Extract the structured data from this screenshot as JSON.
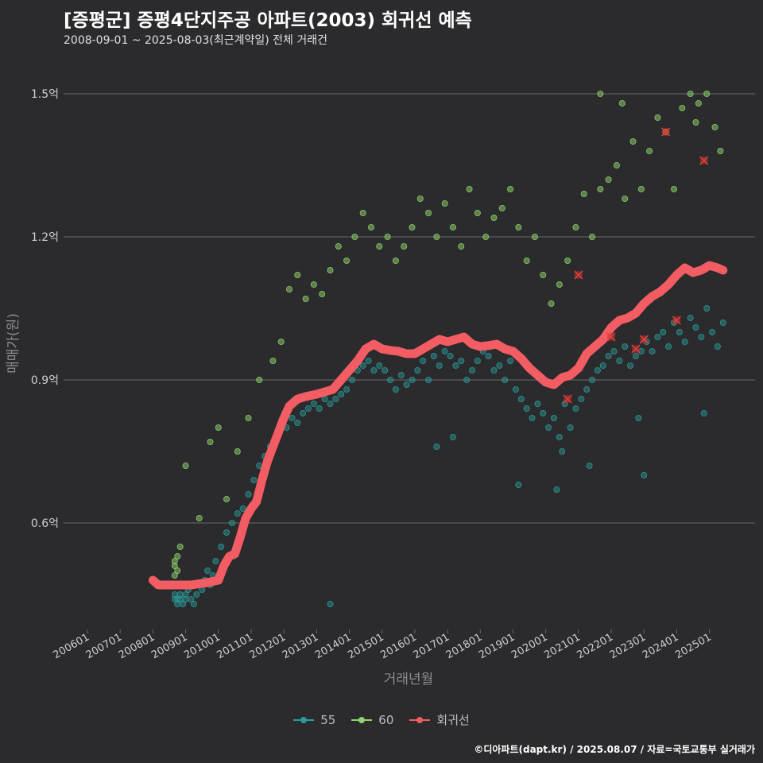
{
  "title": "[증평군] 증평4단지주공 아파트(2003) 회귀선 예측",
  "subtitle": "2008-09-01 ~ 2025-08-03(최근계약일) 전체 거래건",
  "footer": "©디아파트(dapt.kr) / 2025.08.07 / 자료=국토교통부 실거래가",
  "colors": {
    "background": "#2b2a2d",
    "grid": "#6a6a6a",
    "series_55": "#2a9d9b",
    "series_60": "#8fd46a",
    "regression": "#f25c63",
    "highlight": "#c0392b"
  },
  "chart_data": {
    "type": "scatter",
    "xlabel": "거래년월",
    "ylabel": "매매가(원)",
    "xlim": [
      "2006-01",
      "2025-12"
    ],
    "ylim": [
      0.38,
      1.58
    ],
    "x_ticks": [
      "200601",
      "200701",
      "200801",
      "200901",
      "201001",
      "201101",
      "201201",
      "201301",
      "201401",
      "201501",
      "201601",
      "201701",
      "201801",
      "201901",
      "202001",
      "202101",
      "202201",
      "202301",
      "202401",
      "202501"
    ],
    "y_ticks": [
      {
        "value": 0.6,
        "label": "0.6억"
      },
      {
        "value": 0.9,
        "label": "0.9억"
      },
      {
        "value": 1.2,
        "label": "1.2억"
      },
      {
        "value": 1.5,
        "label": "1.5억"
      }
    ],
    "grid": true,
    "legend_position": "bottom",
    "series": [
      {
        "name": "55",
        "type": "scatter",
        "description_points": "approximate cluster of transactions",
        "points": [
          [
            "2008-09",
            0.44
          ],
          [
            "2008-09",
            0.45
          ],
          [
            "2008-10",
            0.43
          ],
          [
            "2008-10",
            0.44
          ],
          [
            "2008-11",
            0.45
          ],
          [
            "2008-11",
            0.44
          ],
          [
            "2008-12",
            0.43
          ],
          [
            "2009-01",
            0.45
          ],
          [
            "2009-01",
            0.44
          ],
          [
            "2009-02",
            0.46
          ],
          [
            "2009-03",
            0.44
          ],
          [
            "2009-04",
            0.43
          ],
          [
            "2009-05",
            0.45
          ],
          [
            "2009-06",
            0.47
          ],
          [
            "2009-07",
            0.46
          ],
          [
            "2009-08",
            0.48
          ],
          [
            "2009-09",
            0.5
          ],
          [
            "2009-10",
            0.47
          ],
          [
            "2009-11",
            0.49
          ],
          [
            "2009-12",
            0.52
          ],
          [
            "2010-02",
            0.55
          ],
          [
            "2010-04",
            0.58
          ],
          [
            "2010-06",
            0.6
          ],
          [
            "2010-08",
            0.62
          ],
          [
            "2010-10",
            0.63
          ],
          [
            "2010-12",
            0.66
          ],
          [
            "2011-02",
            0.69
          ],
          [
            "2011-04",
            0.72
          ],
          [
            "2011-06",
            0.74
          ],
          [
            "2011-08",
            0.76
          ],
          [
            "2011-10",
            0.78
          ],
          [
            "2011-12",
            0.8
          ],
          [
            "2012-02",
            0.8
          ],
          [
            "2012-04",
            0.82
          ],
          [
            "2012-06",
            0.81
          ],
          [
            "2012-08",
            0.83
          ],
          [
            "2012-10",
            0.84
          ],
          [
            "2012-12",
            0.85
          ],
          [
            "2013-02",
            0.84
          ],
          [
            "2013-04",
            0.86
          ],
          [
            "2013-06",
            0.85
          ],
          [
            "2013-08",
            0.86
          ],
          [
            "2013-10",
            0.87
          ],
          [
            "2013-12",
            0.88
          ],
          [
            "2014-02",
            0.9
          ],
          [
            "2014-04",
            0.92
          ],
          [
            "2014-06",
            0.93
          ],
          [
            "2014-08",
            0.94
          ],
          [
            "2014-10",
            0.92
          ],
          [
            "2014-12",
            0.93
          ],
          [
            "2015-02",
            0.92
          ],
          [
            "2015-04",
            0.9
          ],
          [
            "2015-06",
            0.88
          ],
          [
            "2015-08",
            0.91
          ],
          [
            "2015-10",
            0.89
          ],
          [
            "2015-12",
            0.9
          ],
          [
            "2016-02",
            0.92
          ],
          [
            "2016-04",
            0.94
          ],
          [
            "2016-06",
            0.9
          ],
          [
            "2016-08",
            0.95
          ],
          [
            "2016-10",
            0.93
          ],
          [
            "2016-12",
            0.96
          ],
          [
            "2017-02",
            0.95
          ],
          [
            "2017-04",
            0.93
          ],
          [
            "2017-06",
            0.94
          ],
          [
            "2017-08",
            0.9
          ],
          [
            "2017-10",
            0.92
          ],
          [
            "2017-12",
            0.94
          ],
          [
            "2018-02",
            0.96
          ],
          [
            "2018-04",
            0.95
          ],
          [
            "2018-06",
            0.92
          ],
          [
            "2018-08",
            0.93
          ],
          [
            "2018-10",
            0.9
          ],
          [
            "2018-12",
            0.94
          ],
          [
            "2019-02",
            0.88
          ],
          [
            "2019-04",
            0.86
          ],
          [
            "2019-06",
            0.84
          ],
          [
            "2019-08",
            0.82
          ],
          [
            "2019-10",
            0.85
          ],
          [
            "2019-12",
            0.83
          ],
          [
            "2020-02",
            0.8
          ],
          [
            "2020-04",
            0.82
          ],
          [
            "2020-06",
            0.78
          ],
          [
            "2020-08",
            0.85
          ],
          [
            "2020-10",
            0.8
          ],
          [
            "2020-12",
            0.84
          ],
          [
            "2021-02",
            0.86
          ],
          [
            "2021-04",
            0.88
          ],
          [
            "2021-06",
            0.9
          ],
          [
            "2021-08",
            0.92
          ],
          [
            "2021-10",
            0.93
          ],
          [
            "2021-12",
            0.95
          ],
          [
            "2022-02",
            0.96
          ],
          [
            "2022-04",
            0.94
          ],
          [
            "2022-06",
            0.97
          ],
          [
            "2022-08",
            0.93
          ],
          [
            "2022-10",
            0.95
          ],
          [
            "2022-12",
            0.96
          ],
          [
            "2023-02",
            0.98
          ],
          [
            "2023-04",
            0.96
          ],
          [
            "2023-06",
            0.99
          ],
          [
            "2023-08",
            1.0
          ],
          [
            "2023-10",
            0.97
          ],
          [
            "2023-12",
            1.02
          ],
          [
            "2024-02",
            1.0
          ],
          [
            "2024-04",
            0.98
          ],
          [
            "2024-06",
            1.03
          ],
          [
            "2024-08",
            1.01
          ],
          [
            "2024-10",
            0.99
          ],
          [
            "2024-12",
            1.05
          ],
          [
            "2025-02",
            1.0
          ],
          [
            "2025-04",
            0.97
          ],
          [
            "2025-06",
            1.02
          ],
          [
            "2013-06",
            0.43
          ],
          [
            "2016-09",
            0.76
          ],
          [
            "2019-03",
            0.68
          ],
          [
            "2020-05",
            0.67
          ],
          [
            "2020-07",
            0.75
          ],
          [
            "2022-11",
            0.82
          ],
          [
            "2023-01",
            0.7
          ],
          [
            "2024-11",
            0.83
          ],
          [
            "2021-05",
            0.72
          ],
          [
            "2017-03",
            0.78
          ]
        ]
      },
      {
        "name": "60",
        "type": "scatter",
        "points": [
          [
            "2008-09",
            0.49
          ],
          [
            "2008-09",
            0.51
          ],
          [
            "2008-09",
            0.52
          ],
          [
            "2008-10",
            0.5
          ],
          [
            "2008-10",
            0.53
          ],
          [
            "2008-11",
            0.55
          ],
          [
            "2009-01",
            0.72
          ],
          [
            "2009-06",
            0.61
          ],
          [
            "2009-10",
            0.77
          ],
          [
            "2010-01",
            0.8
          ],
          [
            "2010-04",
            0.65
          ],
          [
            "2010-08",
            0.75
          ],
          [
            "2010-12",
            0.82
          ],
          [
            "2011-04",
            0.9
          ],
          [
            "2011-09",
            0.94
          ],
          [
            "2011-12",
            0.98
          ],
          [
            "2012-03",
            1.09
          ],
          [
            "2012-06",
            1.12
          ],
          [
            "2012-09",
            1.07
          ],
          [
            "2012-12",
            1.1
          ],
          [
            "2013-03",
            1.08
          ],
          [
            "2013-06",
            1.13
          ],
          [
            "2013-09",
            1.18
          ],
          [
            "2013-12",
            1.15
          ],
          [
            "2014-03",
            1.2
          ],
          [
            "2014-06",
            1.25
          ],
          [
            "2014-09",
            1.22
          ],
          [
            "2014-12",
            1.18
          ],
          [
            "2015-03",
            1.2
          ],
          [
            "2015-06",
            1.15
          ],
          [
            "2015-09",
            1.18
          ],
          [
            "2015-12",
            1.22
          ],
          [
            "2016-03",
            1.28
          ],
          [
            "2016-06",
            1.25
          ],
          [
            "2016-09",
            1.2
          ],
          [
            "2016-12",
            1.27
          ],
          [
            "2017-03",
            1.22
          ],
          [
            "2017-06",
            1.18
          ],
          [
            "2017-09",
            1.3
          ],
          [
            "2017-12",
            1.25
          ],
          [
            "2018-03",
            1.2
          ],
          [
            "2018-06",
            1.24
          ],
          [
            "2018-09",
            1.26
          ],
          [
            "2018-12",
            1.3
          ],
          [
            "2019-03",
            1.22
          ],
          [
            "2019-06",
            1.15
          ],
          [
            "2019-09",
            1.2
          ],
          [
            "2019-12",
            1.12
          ],
          [
            "2020-03",
            1.06
          ],
          [
            "2020-06",
            1.1
          ],
          [
            "2020-09",
            1.15
          ],
          [
            "2020-12",
            1.22
          ],
          [
            "2021-03",
            1.29
          ],
          [
            "2021-06",
            1.2
          ],
          [
            "2021-09",
            1.3
          ],
          [
            "2021-12",
            1.32
          ],
          [
            "2022-03",
            1.35
          ],
          [
            "2022-06",
            1.28
          ],
          [
            "2022-09",
            1.4
          ],
          [
            "2022-12",
            1.3
          ],
          [
            "2023-03",
            1.38
          ],
          [
            "2023-06",
            1.45
          ],
          [
            "2023-09",
            1.42
          ],
          [
            "2023-12",
            1.3
          ],
          [
            "2024-03",
            1.47
          ],
          [
            "2024-06",
            1.5
          ],
          [
            "2024-09",
            1.48
          ],
          [
            "2024-12",
            1.5
          ],
          [
            "2025-03",
            1.43
          ],
          [
            "2025-05",
            1.38
          ],
          [
            "2021-09",
            1.5
          ],
          [
            "2022-05",
            1.48
          ],
          [
            "2024-08",
            1.44
          ]
        ]
      },
      {
        "name": "회귀선",
        "type": "line",
        "points": [
          [
            "2008-01",
            0.48
          ],
          [
            "2008-03",
            0.47
          ],
          [
            "2008-09",
            0.47
          ],
          [
            "2009-03",
            0.47
          ],
          [
            "2009-09",
            0.475
          ],
          [
            "2010-01",
            0.48
          ],
          [
            "2010-03",
            0.51
          ],
          [
            "2010-05",
            0.53
          ],
          [
            "2010-07",
            0.535
          ],
          [
            "2010-09",
            0.57
          ],
          [
            "2010-11",
            0.61
          ],
          [
            "2011-01",
            0.63
          ],
          [
            "2011-03",
            0.645
          ],
          [
            "2011-05",
            0.69
          ],
          [
            "2011-07",
            0.73
          ],
          [
            "2011-09",
            0.76
          ],
          [
            "2011-11",
            0.79
          ],
          [
            "2012-01",
            0.82
          ],
          [
            "2012-03",
            0.845
          ],
          [
            "2012-06",
            0.86
          ],
          [
            "2012-09",
            0.865
          ],
          [
            "2013-01",
            0.87
          ],
          [
            "2013-04",
            0.875
          ],
          [
            "2013-07",
            0.88
          ],
          [
            "2013-10",
            0.9
          ],
          [
            "2014-01",
            0.92
          ],
          [
            "2014-04",
            0.94
          ],
          [
            "2014-07",
            0.965
          ],
          [
            "2014-10",
            0.975
          ],
          [
            "2015-01",
            0.965
          ],
          [
            "2015-04",
            0.962
          ],
          [
            "2015-07",
            0.96
          ],
          [
            "2015-10",
            0.955
          ],
          [
            "2016-01",
            0.955
          ],
          [
            "2016-04",
            0.965
          ],
          [
            "2016-07",
            0.975
          ],
          [
            "2016-10",
            0.985
          ],
          [
            "2017-01",
            0.98
          ],
          [
            "2017-04",
            0.985
          ],
          [
            "2017-07",
            0.99
          ],
          [
            "2017-10",
            0.975
          ],
          [
            "2018-01",
            0.97
          ],
          [
            "2018-04",
            0.972
          ],
          [
            "2018-07",
            0.975
          ],
          [
            "2018-10",
            0.965
          ],
          [
            "2019-01",
            0.96
          ],
          [
            "2019-04",
            0.945
          ],
          [
            "2019-07",
            0.925
          ],
          [
            "2019-10",
            0.91
          ],
          [
            "2020-01",
            0.895
          ],
          [
            "2020-04",
            0.89
          ],
          [
            "2020-07",
            0.905
          ],
          [
            "2020-10",
            0.91
          ],
          [
            "2021-01",
            0.925
          ],
          [
            "2021-04",
            0.955
          ],
          [
            "2021-07",
            0.97
          ],
          [
            "2021-10",
            0.985
          ],
          [
            "2022-01",
            1.01
          ],
          [
            "2022-04",
            1.025
          ],
          [
            "2022-07",
            1.03
          ],
          [
            "2022-10",
            1.04
          ],
          [
            "2023-01",
            1.06
          ],
          [
            "2023-04",
            1.075
          ],
          [
            "2023-07",
            1.085
          ],
          [
            "2023-10",
            1.1
          ],
          [
            "2024-01",
            1.12
          ],
          [
            "2024-04",
            1.135
          ],
          [
            "2024-07",
            1.125
          ],
          [
            "2024-10",
            1.13
          ],
          [
            "2025-01",
            1.14
          ],
          [
            "2025-04",
            1.135
          ],
          [
            "2025-06",
            1.13
          ]
        ]
      }
    ],
    "highlighted_points": [
      [
        "2021-01",
        1.12
      ],
      [
        "2023-09",
        1.42
      ],
      [
        "2024-11",
        1.36
      ],
      [
        "2022-01",
        0.99
      ],
      [
        "2022-10",
        0.965
      ],
      [
        "2023-01",
        0.985
      ],
      [
        "2024-01",
        1.025
      ],
      [
        "2020-09",
        0.86
      ]
    ]
  },
  "legend": [
    {
      "label": "55",
      "color_key": "series_55"
    },
    {
      "label": "60",
      "color_key": "series_60"
    },
    {
      "label": "회귀선",
      "color_key": "regression"
    }
  ]
}
